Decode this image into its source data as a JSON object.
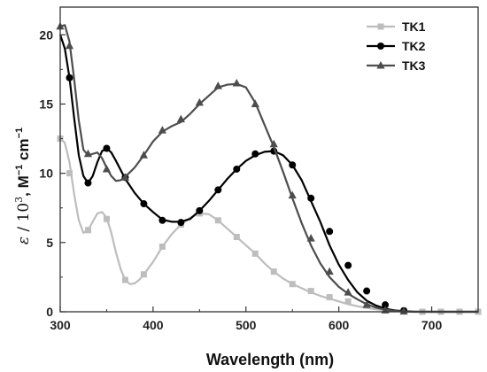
{
  "chart_data": {
    "type": "line",
    "xlabel": "Wavelength (nm)",
    "ylabel": {
      "eps": "ε",
      "slash": " / 10",
      "exp3": "3",
      "unitM": ", M",
      "expM": "−1",
      "unitCm": " cm",
      "expCm": "−1"
    },
    "xlim": [
      300,
      750
    ],
    "ylim": [
      0,
      22
    ],
    "x_ticks": [
      300,
      400,
      500,
      600,
      700
    ],
    "y_ticks": [
      0,
      5,
      10,
      15,
      20
    ],
    "legend_position": "top-right",
    "grid": false,
    "series": [
      {
        "name": "TK1",
        "color": "#bdbdbd",
        "marker": "square",
        "curve": [
          [
            300,
            12.5
          ],
          [
            305,
            12.2
          ],
          [
            310,
            10.8
          ],
          [
            315,
            8.5
          ],
          [
            320,
            6.6
          ],
          [
            325,
            5.7
          ],
          [
            330,
            5.9
          ],
          [
            335,
            6.5
          ],
          [
            340,
            7.1
          ],
          [
            345,
            7.2
          ],
          [
            350,
            6.8
          ],
          [
            355,
            5.7
          ],
          [
            360,
            4.3
          ],
          [
            365,
            3.1
          ],
          [
            370,
            2.3
          ],
          [
            375,
            2.0
          ],
          [
            380,
            2.05
          ],
          [
            385,
            2.3
          ],
          [
            390,
            2.7
          ],
          [
            400,
            3.6
          ],
          [
            410,
            4.7
          ],
          [
            420,
            5.6
          ],
          [
            430,
            6.3
          ],
          [
            440,
            6.8
          ],
          [
            450,
            7.1
          ],
          [
            460,
            7.05
          ],
          [
            470,
            6.6
          ],
          [
            480,
            6.0
          ],
          [
            490,
            5.4
          ],
          [
            500,
            4.8
          ],
          [
            510,
            4.2
          ],
          [
            520,
            3.5
          ],
          [
            530,
            2.9
          ],
          [
            540,
            2.4
          ],
          [
            550,
            2.0
          ],
          [
            560,
            1.7
          ],
          [
            570,
            1.4
          ],
          [
            580,
            1.15
          ],
          [
            590,
            0.95
          ],
          [
            600,
            0.75
          ],
          [
            610,
            0.55
          ],
          [
            620,
            0.4
          ],
          [
            630,
            0.28
          ],
          [
            640,
            0.18
          ],
          [
            650,
            0.1
          ],
          [
            660,
            0.05
          ],
          [
            670,
            0.02
          ],
          [
            680,
            0.01
          ],
          [
            700,
            0
          ],
          [
            750,
            0
          ]
        ],
        "markers": [
          [
            300,
            12.5
          ],
          [
            310,
            10.0
          ],
          [
            330,
            5.9
          ],
          [
            350,
            6.7
          ],
          [
            370,
            2.3
          ],
          [
            390,
            2.7
          ],
          [
            410,
            4.7
          ],
          [
            430,
            6.3
          ],
          [
            450,
            7.1
          ],
          [
            470,
            6.6
          ],
          [
            490,
            5.4
          ],
          [
            510,
            4.2
          ],
          [
            530,
            2.9
          ],
          [
            550,
            2.0
          ],
          [
            570,
            1.5
          ],
          [
            590,
            1.05
          ],
          [
            610,
            0.75
          ],
          [
            630,
            0.45
          ],
          [
            650,
            0.2
          ],
          [
            670,
            0.05
          ],
          [
            690,
            0
          ],
          [
            710,
            0
          ],
          [
            730,
            0
          ],
          [
            750,
            0
          ]
        ]
      },
      {
        "name": "TK2",
        "color": "#000000",
        "marker": "circle",
        "curve": [
          [
            300,
            20.0
          ],
          [
            305,
            19.0
          ],
          [
            310,
            16.9
          ],
          [
            315,
            14.0
          ],
          [
            320,
            11.3
          ],
          [
            325,
            9.8
          ],
          [
            330,
            9.3
          ],
          [
            335,
            9.8
          ],
          [
            340,
            10.8
          ],
          [
            345,
            11.6
          ],
          [
            350,
            11.8
          ],
          [
            355,
            11.5
          ],
          [
            360,
            10.9
          ],
          [
            370,
            9.6
          ],
          [
            380,
            8.6
          ],
          [
            390,
            7.8
          ],
          [
            400,
            7.2
          ],
          [
            410,
            6.65
          ],
          [
            420,
            6.5
          ],
          [
            430,
            6.5
          ],
          [
            440,
            6.7
          ],
          [
            450,
            7.3
          ],
          [
            460,
            8.0
          ],
          [
            470,
            8.8
          ],
          [
            480,
            9.6
          ],
          [
            490,
            10.3
          ],
          [
            500,
            10.9
          ],
          [
            510,
            11.3
          ],
          [
            520,
            11.55
          ],
          [
            530,
            11.6
          ],
          [
            540,
            11.3
          ],
          [
            550,
            10.6
          ],
          [
            560,
            9.5
          ],
          [
            570,
            8.0
          ],
          [
            580,
            6.5
          ],
          [
            590,
            4.8
          ],
          [
            600,
            3.4
          ],
          [
            610,
            2.3
          ],
          [
            620,
            1.4
          ],
          [
            630,
            0.8
          ],
          [
            640,
            0.45
          ],
          [
            650,
            0.22
          ],
          [
            660,
            0.1
          ],
          [
            670,
            0.04
          ],
          [
            680,
            0.01
          ],
          [
            700,
            0
          ],
          [
            750,
            0
          ]
        ],
        "markers": [
          [
            310,
            16.9
          ],
          [
            330,
            9.3
          ],
          [
            350,
            11.8
          ],
          [
            370,
            9.7
          ],
          [
            390,
            7.8
          ],
          [
            410,
            6.6
          ],
          [
            430,
            6.45
          ],
          [
            450,
            7.3
          ],
          [
            470,
            8.8
          ],
          [
            490,
            10.3
          ],
          [
            510,
            11.4
          ],
          [
            530,
            11.6
          ],
          [
            550,
            10.6
          ],
          [
            570,
            8.2
          ],
          [
            590,
            5.8
          ],
          [
            610,
            3.35
          ],
          [
            630,
            1.5
          ],
          [
            650,
            0.5
          ],
          [
            670,
            0.08
          ]
        ]
      },
      {
        "name": "TK3",
        "color": "#4d4d4d",
        "marker": "triangle",
        "curve": [
          [
            300,
            20.6
          ],
          [
            305,
            20.7
          ],
          [
            310,
            19.5
          ],
          [
            315,
            16.8
          ],
          [
            320,
            13.8
          ],
          [
            325,
            11.7
          ],
          [
            330,
            11.3
          ],
          [
            335,
            11.4
          ],
          [
            340,
            11.5
          ],
          [
            345,
            11.1
          ],
          [
            350,
            10.4
          ],
          [
            355,
            9.8
          ],
          [
            360,
            9.45
          ],
          [
            365,
            9.5
          ],
          [
            370,
            9.75
          ],
          [
            380,
            10.4
          ],
          [
            390,
            11.3
          ],
          [
            400,
            12.3
          ],
          [
            410,
            13.0
          ],
          [
            420,
            13.4
          ],
          [
            430,
            13.7
          ],
          [
            440,
            14.3
          ],
          [
            450,
            15.0
          ],
          [
            460,
            15.6
          ],
          [
            470,
            16.2
          ],
          [
            480,
            16.4
          ],
          [
            490,
            16.45
          ],
          [
            500,
            16.2
          ],
          [
            510,
            15.1
          ],
          [
            520,
            13.5
          ],
          [
            530,
            11.9
          ],
          [
            540,
            10.1
          ],
          [
            550,
            8.2
          ],
          [
            560,
            6.4
          ],
          [
            570,
            4.8
          ],
          [
            580,
            3.5
          ],
          [
            590,
            2.5
          ],
          [
            600,
            1.8
          ],
          [
            610,
            1.3
          ],
          [
            620,
            0.9
          ],
          [
            630,
            0.55
          ],
          [
            640,
            0.3
          ],
          [
            650,
            0.15
          ],
          [
            660,
            0.06
          ],
          [
            670,
            0.02
          ],
          [
            680,
            0
          ],
          [
            750,
            0
          ]
        ],
        "markers": [
          [
            300,
            20.6
          ],
          [
            310,
            19.2
          ],
          [
            330,
            11.4
          ],
          [
            350,
            10.3
          ],
          [
            370,
            9.7
          ],
          [
            390,
            11.3
          ],
          [
            410,
            13.1
          ],
          [
            430,
            13.9
          ],
          [
            450,
            15.1
          ],
          [
            470,
            16.3
          ],
          [
            490,
            16.5
          ],
          [
            510,
            15.0
          ],
          [
            530,
            12.1
          ],
          [
            550,
            8.4
          ],
          [
            570,
            5.3
          ],
          [
            590,
            2.9
          ],
          [
            610,
            1.4
          ],
          [
            630,
            0.5
          ],
          [
            650,
            0.1
          ],
          [
            670,
            0.02
          ]
        ]
      }
    ]
  }
}
